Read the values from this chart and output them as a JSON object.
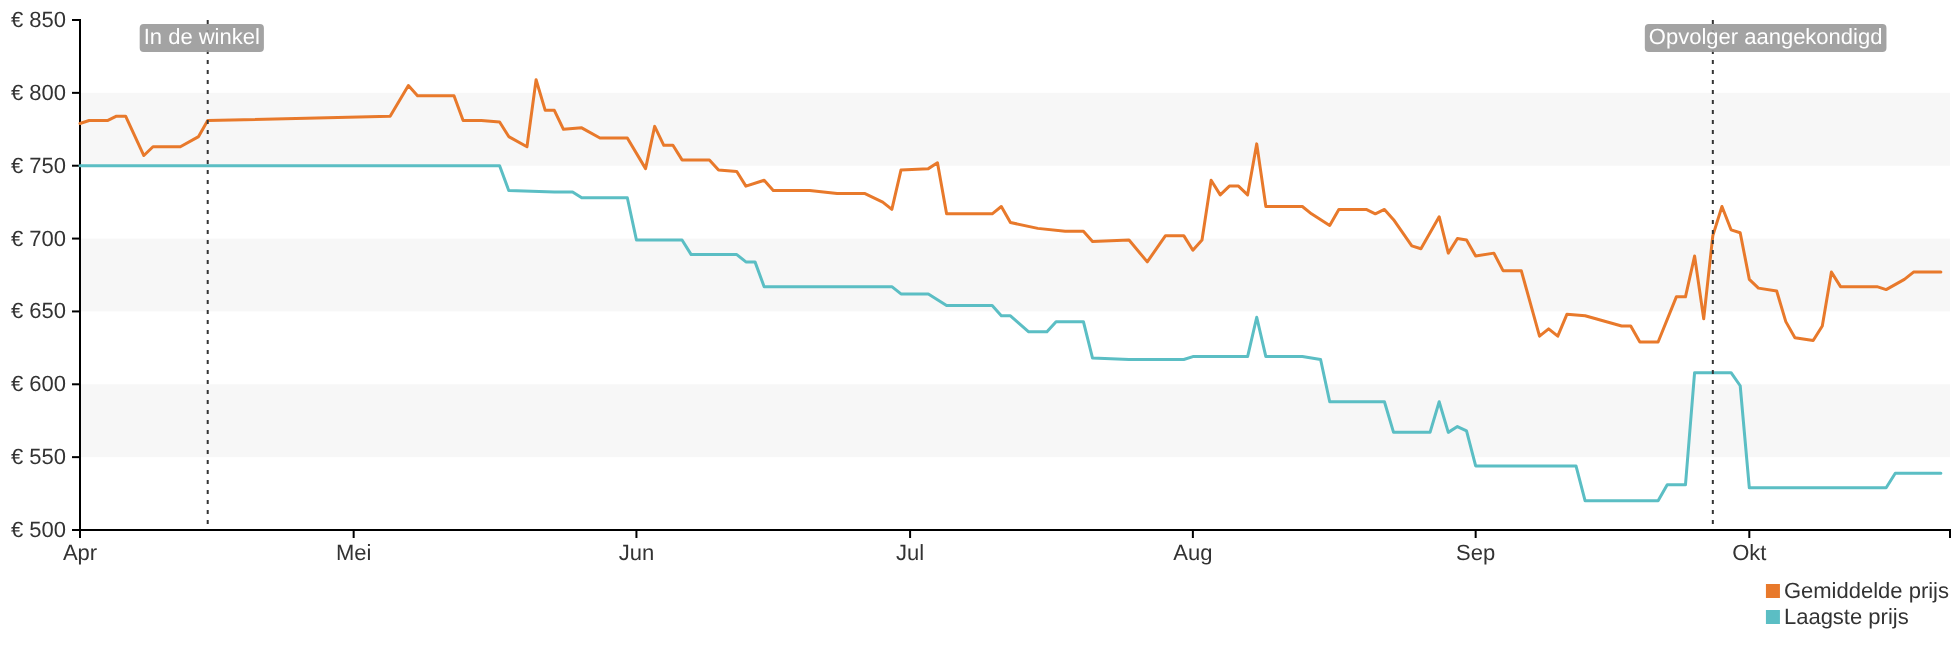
{
  "chart_data": {
    "type": "line",
    "xlim": [
      "--04-01",
      "--10-23"
    ],
    "ylim": [
      500,
      850
    ],
    "xticks": [
      {
        "value": "--04-01",
        "label": "Apr"
      },
      {
        "value": "--05-01",
        "label": "Mei"
      },
      {
        "value": "--06-01",
        "label": "Jun"
      },
      {
        "value": "--07-01",
        "label": "Jul"
      },
      {
        "value": "--08-01",
        "label": "Aug"
      },
      {
        "value": "--09-01",
        "label": "Sep"
      },
      {
        "value": "--10-01",
        "label": "Okt"
      }
    ],
    "yticks": [
      {
        "value": 500,
        "label": "€ 500"
      },
      {
        "value": 550,
        "label": "€ 550"
      },
      {
        "value": 600,
        "label": "€ 600"
      },
      {
        "value": 650,
        "label": "€ 650"
      },
      {
        "value": 700,
        "label": "€ 700"
      },
      {
        "value": 750,
        "label": "€ 750"
      },
      {
        "value": 800,
        "label": "€ 800"
      },
      {
        "value": 850,
        "label": "€ 850"
      }
    ],
    "bands": [
      {
        "axis": "y",
        "from": 550,
        "to": 600,
        "color": "#f7f7f7"
      },
      {
        "axis": "y",
        "from": 650,
        "to": 700,
        "color": "#f7f7f7"
      },
      {
        "axis": "y",
        "from": 750,
        "to": 800,
        "color": "#f7f7f7"
      }
    ],
    "legend": "bottom right",
    "marker": "none",
    "line_style": "solid",
    "ref_lines": [
      {
        "axis": "x",
        "value": "--04-15",
        "label": "In de winkel",
        "color": "#333333",
        "line_style": "dotted"
      },
      {
        "axis": "x",
        "value": "--09-27",
        "label": "Opvolger aangekondigd",
        "color": "#333333",
        "line_style": "dotted"
      }
    ],
    "series": [
      {
        "name": "Gemiddelde prijs",
        "color": "#e8792b",
        "x": [
          "--04-01",
          "--04-02",
          "--04-04",
          "--04-05",
          "--04-06",
          "--04-08",
          "--04-09",
          "--04-12",
          "--04-14",
          "--04-15",
          "--05-05",
          "--05-07",
          "--05-08",
          "--05-12",
          "--05-13",
          "--05-15",
          "--05-17",
          "--05-18",
          "--05-20",
          "--05-21",
          "--05-22",
          "--05-23",
          "--05-24",
          "--05-26",
          "--05-28",
          "--05-31",
          "--06-02",
          "--06-03",
          "--06-04",
          "--06-05",
          "--06-06",
          "--06-09",
          "--06-10",
          "--06-12",
          "--06-13",
          "--06-15",
          "--06-16",
          "--06-20",
          "--06-23",
          "--06-26",
          "--06-28",
          "--06-29",
          "--06-30",
          "--07-03",
          "--07-04",
          "--07-05",
          "--07-10",
          "--07-11",
          "--07-12",
          "--07-15",
          "--07-18",
          "--07-20",
          "--07-21",
          "--07-25",
          "--07-27",
          "--07-29",
          "--07-31",
          "--08-01",
          "--08-02",
          "--08-03",
          "--08-04",
          "--08-05",
          "--08-06",
          "--08-07",
          "--08-08",
          "--08-09",
          "--08-13",
          "--08-14",
          "--08-16",
          "--08-17",
          "--08-20",
          "--08-21",
          "--08-22",
          "--08-23",
          "--08-25",
          "--08-26",
          "--08-28",
          "--08-29",
          "--08-30",
          "--08-31",
          "--09-01",
          "--09-03",
          "--09-04",
          "--09-06",
          "--09-08",
          "--09-09",
          "--09-10",
          "--09-11",
          "--09-13",
          "--09-17",
          "--09-18",
          "--09-19",
          "--09-21",
          "--09-23",
          "--09-24",
          "--09-25",
          "--09-26",
          "--09-27",
          "--09-28",
          "--09-29",
          "--09-30",
          "--10-01",
          "--10-02",
          "--10-04",
          "--10-05",
          "--10-06",
          "--10-08",
          "--10-09",
          "--10-10",
          "--10-11",
          "--10-15",
          "--10-16",
          "--10-18",
          "--10-19",
          "--10-22"
        ],
        "values": [
          779,
          781,
          781,
          784,
          784,
          757,
          763,
          763,
          770,
          781,
          784,
          805,
          798,
          798,
          781,
          781,
          780,
          770,
          763,
          809,
          788,
          788,
          775,
          776,
          769,
          769,
          748,
          777,
          764,
          764,
          754,
          754,
          747,
          746,
          736,
          740,
          733,
          733,
          731,
          731,
          725,
          720,
          747,
          748,
          752,
          717,
          717,
          722,
          711,
          707,
          705,
          705,
          698,
          699,
          684,
          702,
          702,
          692,
          699,
          740,
          730,
          736,
          736,
          730,
          765,
          722,
          722,
          717,
          709,
          720,
          720,
          717,
          720,
          713,
          695,
          693,
          715,
          690,
          700,
          699,
          688,
          690,
          678,
          678,
          633,
          638,
          633,
          648,
          647,
          640,
          640,
          629,
          629,
          660,
          660,
          688,
          645,
          702,
          722,
          706,
          704,
          672,
          666,
          664,
          643,
          632,
          630,
          640,
          677,
          667,
          667,
          665,
          672,
          677,
          677
        ]
      },
      {
        "name": "Laagste prijs",
        "color": "#5bbec4",
        "x": [
          "--04-01",
          "--05-17",
          "--05-18",
          "--05-23",
          "--05-25",
          "--05-26",
          "--05-31",
          "--06-01",
          "--06-06",
          "--06-07",
          "--06-12",
          "--06-13",
          "--06-14",
          "--06-15",
          "--06-29",
          "--06-30",
          "--07-03",
          "--07-05",
          "--07-10",
          "--07-11",
          "--07-12",
          "--07-14",
          "--07-16",
          "--07-17",
          "--07-20",
          "--07-21",
          "--07-25",
          "--07-31",
          "--08-01",
          "--08-07",
          "--08-08",
          "--08-09",
          "--08-13",
          "--08-15",
          "--08-16",
          "--08-22",
          "--08-23",
          "--08-27",
          "--08-28",
          "--08-29",
          "--08-30",
          "--08-31",
          "--09-01",
          "--09-12",
          "--09-13",
          "--09-21",
          "--09-22",
          "--09-24",
          "--09-25",
          "--09-29",
          "--09-30",
          "--10-01",
          "--10-16",
          "--10-17",
          "--10-22"
        ],
        "values": [
          750,
          750,
          733,
          732,
          732,
          728,
          728,
          699,
          699,
          689,
          689,
          684,
          684,
          667,
          667,
          662,
          662,
          654,
          654,
          647,
          647,
          636,
          636,
          643,
          643,
          618,
          617,
          617,
          619,
          619,
          646,
          619,
          619,
          617,
          588,
          588,
          567,
          567,
          588,
          567,
          571,
          568,
          544,
          544,
          520,
          520,
          531,
          531,
          608,
          608,
          599,
          529,
          529,
          539,
          539
        ]
      }
    ]
  }
}
